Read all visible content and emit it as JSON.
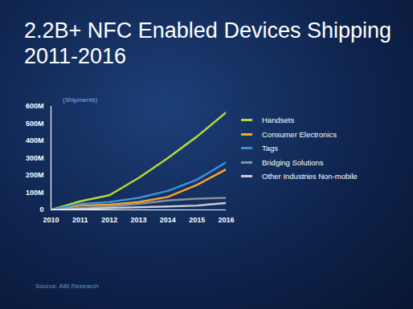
{
  "chart_data": {
    "type": "line",
    "title": "2.2B+ NFC Enabled Devices Shipping 2011-2016",
    "y_label": "(Shipments)",
    "source": "Source: ABI Research",
    "x": [
      2010,
      2011,
      2012,
      2013,
      2014,
      2015,
      2016
    ],
    "series": [
      {
        "name": "Handsets",
        "color": "#b7d63a",
        "values": [
          0,
          50,
          85,
          185,
          300,
          425,
          565
        ]
      },
      {
        "name": "Consumer Electronics",
        "color": "#f5a623",
        "values": [
          0,
          25,
          30,
          45,
          75,
          145,
          235
        ]
      },
      {
        "name": "Tags",
        "color": "#3d8fdc",
        "values": [
          0,
          35,
          45,
          70,
          110,
          175,
          275
        ]
      },
      {
        "name": "Bridging Solutions",
        "color": "#8a8f99",
        "values": [
          0,
          10,
          20,
          35,
          55,
          65,
          70
        ]
      },
      {
        "name": "Other Industries Non-mobile",
        "color": "#c9ccd8",
        "values": [
          0,
          5,
          10,
          15,
          20,
          25,
          40
        ]
      }
    ],
    "xlim": [
      2010,
      2016
    ],
    "xticks": [
      2010,
      2011,
      2012,
      2013,
      2014,
      2015,
      2016
    ],
    "ylim": [
      0,
      600
    ],
    "yticks": [
      0,
      {
        "value": 100,
        "label": "100M"
      },
      {
        "value": 200,
        "label": "200M"
      },
      {
        "value": 300,
        "label": "300M"
      },
      {
        "value": 400,
        "label": "400M"
      },
      {
        "value": 500,
        "label": "500M"
      },
      {
        "value": 600,
        "label": "600M"
      }
    ],
    "grid": false,
    "legend": "right"
  }
}
